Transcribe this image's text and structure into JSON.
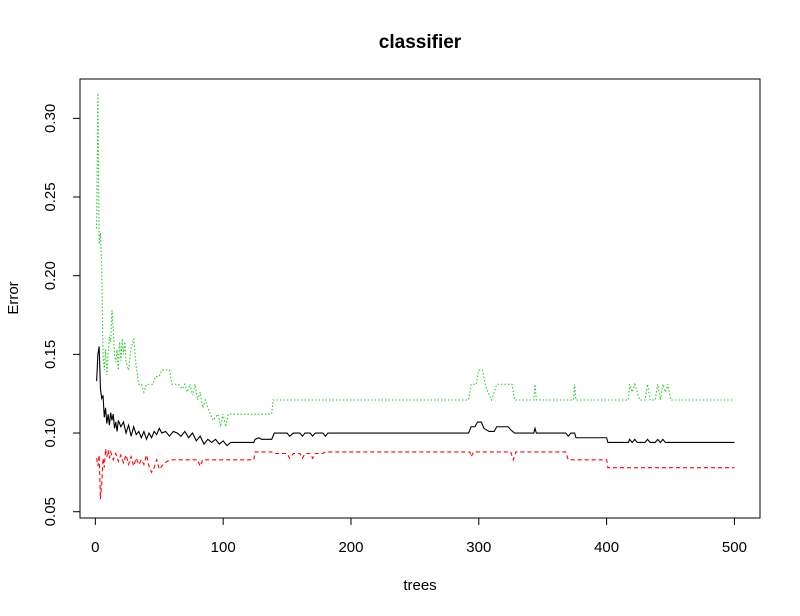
{
  "chart_data": {
    "type": "line",
    "title": "classifier",
    "xlabel": "trees",
    "ylabel": "Error",
    "xlim": [
      -12,
      520
    ],
    "ylim": [
      0.046,
      0.325
    ],
    "x_ticks": [
      0,
      100,
      200,
      300,
      400,
      500
    ],
    "y_ticks": [
      0.05,
      0.1,
      0.15,
      0.2,
      0.25,
      0.3
    ],
    "x_tick_labels": [
      "0",
      "100",
      "200",
      "300",
      "400",
      "500"
    ],
    "y_tick_labels": [
      "0.05",
      "0.10",
      "0.15",
      "0.20",
      "0.25",
      "0.30"
    ],
    "grid": false,
    "legend": "none",
    "series": [
      {
        "color": "#000000",
        "dash": "solid",
        "points": [
          [
            1,
            0.133
          ],
          [
            2,
            0.15
          ],
          [
            3,
            0.155
          ],
          [
            4,
            0.128
          ],
          [
            5,
            0.122
          ],
          [
            6,
            0.124
          ],
          [
            7,
            0.11
          ],
          [
            8,
            0.116
          ],
          [
            9,
            0.106
          ],
          [
            10,
            0.112
          ],
          [
            11,
            0.105
          ],
          [
            12,
            0.113
          ],
          [
            13,
            0.108
          ],
          [
            14,
            0.112
          ],
          [
            15,
            0.103
          ],
          [
            16,
            0.107
          ],
          [
            17,
            0.101
          ],
          [
            18,
            0.108
          ],
          [
            20,
            0.104
          ],
          [
            22,
            0.107
          ],
          [
            24,
            0.1
          ],
          [
            26,
            0.105
          ],
          [
            28,
            0.098
          ],
          [
            30,
            0.104
          ],
          [
            32,
            0.099
          ],
          [
            34,
            0.101
          ],
          [
            36,
            0.097
          ],
          [
            38,
            0.101
          ],
          [
            40,
            0.096
          ],
          [
            42,
            0.1
          ],
          [
            44,
            0.097
          ],
          [
            46,
            0.101
          ],
          [
            48,
            0.099
          ],
          [
            50,
            0.103
          ],
          [
            52,
            0.1
          ],
          [
            55,
            0.101
          ],
          [
            58,
            0.098
          ],
          [
            61,
            0.101
          ],
          [
            64,
            0.1
          ],
          [
            67,
            0.098
          ],
          [
            70,
            0.101
          ],
          [
            73,
            0.097
          ],
          [
            76,
            0.1
          ],
          [
            79,
            0.095
          ],
          [
            82,
            0.098
          ],
          [
            85,
            0.093
          ],
          [
            88,
            0.096
          ],
          [
            91,
            0.094
          ],
          [
            94,
            0.096
          ],
          [
            97,
            0.093
          ],
          [
            100,
            0.095
          ],
          [
            103,
            0.092
          ],
          [
            106,
            0.094
          ],
          [
            115,
            0.094
          ],
          [
            124,
            0.094
          ],
          [
            125,
            0.096
          ],
          [
            128,
            0.097
          ],
          [
            130,
            0.096
          ],
          [
            138,
            0.096
          ],
          [
            140,
            0.1
          ],
          [
            150,
            0.1
          ],
          [
            152,
            0.098
          ],
          [
            155,
            0.1
          ],
          [
            160,
            0.1
          ],
          [
            162,
            0.098
          ],
          [
            164,
            0.1
          ],
          [
            168,
            0.1
          ],
          [
            170,
            0.098
          ],
          [
            172,
            0.1
          ],
          [
            178,
            0.1
          ],
          [
            180,
            0.098
          ],
          [
            182,
            0.1
          ],
          [
            292,
            0.1
          ],
          [
            294,
            0.104
          ],
          [
            297,
            0.104
          ],
          [
            299,
            0.107
          ],
          [
            302,
            0.107
          ],
          [
            304,
            0.103
          ],
          [
            308,
            0.101
          ],
          [
            312,
            0.101
          ],
          [
            314,
            0.104
          ],
          [
            323,
            0.104
          ],
          [
            325,
            0.102
          ],
          [
            328,
            0.1
          ],
          [
            335,
            0.1
          ],
          [
            343,
            0.1
          ],
          [
            344,
            0.103
          ],
          [
            345,
            0.1
          ],
          [
            368,
            0.1
          ],
          [
            370,
            0.098
          ],
          [
            372,
            0.1
          ],
          [
            375,
            0.1
          ],
          [
            376,
            0.097
          ],
          [
            400,
            0.097
          ],
          [
            401,
            0.094
          ],
          [
            417,
            0.094
          ],
          [
            418,
            0.096
          ],
          [
            420,
            0.094
          ],
          [
            422,
            0.096
          ],
          [
            424,
            0.094
          ],
          [
            430,
            0.094
          ],
          [
            432,
            0.096
          ],
          [
            434,
            0.094
          ],
          [
            438,
            0.094
          ],
          [
            440,
            0.096
          ],
          [
            442,
            0.094
          ],
          [
            444,
            0.096
          ],
          [
            446,
            0.094
          ],
          [
            500,
            0.094
          ]
        ]
      },
      {
        "color": "#ff0000",
        "dash": "dashed",
        "points": [
          [
            1,
            0.084
          ],
          [
            2,
            0.079
          ],
          [
            3,
            0.086
          ],
          [
            4,
            0.058
          ],
          [
            5,
            0.068
          ],
          [
            6,
            0.084
          ],
          [
            7,
            0.078
          ],
          [
            8,
            0.09
          ],
          [
            9,
            0.085
          ],
          [
            10,
            0.089
          ],
          [
            11,
            0.084
          ],
          [
            12,
            0.088
          ],
          [
            14,
            0.083
          ],
          [
            16,
            0.087
          ],
          [
            18,
            0.082
          ],
          [
            20,
            0.086
          ],
          [
            22,
            0.081
          ],
          [
            24,
            0.086
          ],
          [
            26,
            0.08
          ],
          [
            28,
            0.085
          ],
          [
            30,
            0.079
          ],
          [
            32,
            0.084
          ],
          [
            34,
            0.08
          ],
          [
            36,
            0.083
          ],
          [
            38,
            0.08
          ],
          [
            40,
            0.086
          ],
          [
            42,
            0.079
          ],
          [
            44,
            0.075
          ],
          [
            46,
            0.078
          ],
          [
            48,
            0.083
          ],
          [
            50,
            0.077
          ],
          [
            53,
            0.08
          ],
          [
            56,
            0.082
          ],
          [
            60,
            0.083
          ],
          [
            70,
            0.083
          ],
          [
            80,
            0.083
          ],
          [
            82,
            0.079
          ],
          [
            84,
            0.083
          ],
          [
            124,
            0.083
          ],
          [
            125,
            0.088
          ],
          [
            138,
            0.088
          ],
          [
            140,
            0.087
          ],
          [
            150,
            0.087
          ],
          [
            152,
            0.084
          ],
          [
            155,
            0.087
          ],
          [
            160,
            0.087
          ],
          [
            162,
            0.084
          ],
          [
            164,
            0.087
          ],
          [
            168,
            0.087
          ],
          [
            170,
            0.084
          ],
          [
            172,
            0.087
          ],
          [
            178,
            0.087
          ],
          [
            180,
            0.088
          ],
          [
            293,
            0.088
          ],
          [
            294,
            0.085
          ],
          [
            296,
            0.088
          ],
          [
            325,
            0.088
          ],
          [
            327,
            0.083
          ],
          [
            329,
            0.088
          ],
          [
            368,
            0.088
          ],
          [
            370,
            0.083
          ],
          [
            400,
            0.083
          ],
          [
            401,
            0.078
          ],
          [
            500,
            0.078
          ]
        ]
      },
      {
        "color": "#22cc22",
        "dash": "dotted",
        "points": [
          [
            1,
            0.23
          ],
          [
            2,
            0.316
          ],
          [
            3,
            0.22
          ],
          [
            4,
            0.227
          ],
          [
            5,
            0.206
          ],
          [
            6,
            0.15
          ],
          [
            7,
            0.14
          ],
          [
            8,
            0.153
          ],
          [
            9,
            0.137
          ],
          [
            10,
            0.15
          ],
          [
            11,
            0.161
          ],
          [
            12,
            0.158
          ],
          [
            13,
            0.178
          ],
          [
            14,
            0.166
          ],
          [
            15,
            0.15
          ],
          [
            16,
            0.145
          ],
          [
            17,
            0.153
          ],
          [
            18,
            0.14
          ],
          [
            19,
            0.158
          ],
          [
            20,
            0.146
          ],
          [
            21,
            0.16
          ],
          [
            22,
            0.15
          ],
          [
            23,
            0.158
          ],
          [
            24,
            0.145
          ],
          [
            26,
            0.14
          ],
          [
            28,
            0.154
          ],
          [
            30,
            0.16
          ],
          [
            32,
            0.142
          ],
          [
            34,
            0.131
          ],
          [
            36,
            0.131
          ],
          [
            38,
            0.126
          ],
          [
            40,
            0.131
          ],
          [
            45,
            0.131
          ],
          [
            47,
            0.136
          ],
          [
            50,
            0.136
          ],
          [
            52,
            0.14
          ],
          [
            58,
            0.14
          ],
          [
            60,
            0.131
          ],
          [
            65,
            0.131
          ],
          [
            68,
            0.128
          ],
          [
            70,
            0.131
          ],
          [
            72,
            0.126
          ],
          [
            74,
            0.131
          ],
          [
            76,
            0.124
          ],
          [
            78,
            0.131
          ],
          [
            80,
            0.121
          ],
          [
            82,
            0.126
          ],
          [
            84,
            0.116
          ],
          [
            86,
            0.121
          ],
          [
            88,
            0.116
          ],
          [
            90,
            0.112
          ],
          [
            92,
            0.108
          ],
          [
            96,
            0.112
          ],
          [
            98,
            0.104
          ],
          [
            100,
            0.112
          ],
          [
            102,
            0.104
          ],
          [
            104,
            0.112
          ],
          [
            106,
            0.112
          ],
          [
            138,
            0.112
          ],
          [
            139,
            0.121
          ],
          [
            292,
            0.121
          ],
          [
            294,
            0.131
          ],
          [
            298,
            0.131
          ],
          [
            300,
            0.14
          ],
          [
            303,
            0.14
          ],
          [
            305,
            0.131
          ],
          [
            307,
            0.126
          ],
          [
            310,
            0.121
          ],
          [
            312,
            0.126
          ],
          [
            314,
            0.131
          ],
          [
            326,
            0.131
          ],
          [
            328,
            0.121
          ],
          [
            343,
            0.121
          ],
          [
            344,
            0.131
          ],
          [
            345,
            0.121
          ],
          [
            374,
            0.121
          ],
          [
            375,
            0.131
          ],
          [
            376,
            0.121
          ],
          [
            417,
            0.121
          ],
          [
            418,
            0.131
          ],
          [
            420,
            0.126
          ],
          [
            422,
            0.131
          ],
          [
            424,
            0.126
          ],
          [
            426,
            0.121
          ],
          [
            430,
            0.121
          ],
          [
            432,
            0.131
          ],
          [
            434,
            0.121
          ],
          [
            438,
            0.121
          ],
          [
            440,
            0.131
          ],
          [
            442,
            0.121
          ],
          [
            444,
            0.131
          ],
          [
            446,
            0.126
          ],
          [
            448,
            0.131
          ],
          [
            450,
            0.121
          ],
          [
            500,
            0.121
          ]
        ]
      }
    ]
  }
}
